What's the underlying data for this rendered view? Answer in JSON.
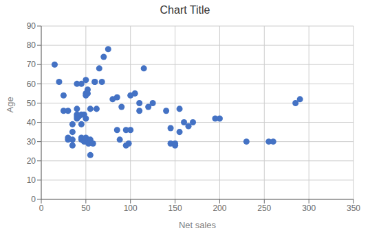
{
  "chart_data": {
    "type": "scatter",
    "title": "Chart Title",
    "xlabel": "Net sales",
    "ylabel": "Age",
    "x": [
      15,
      20,
      25,
      25,
      30,
      30,
      30,
      35,
      35,
      35,
      35,
      40,
      40,
      40,
      40,
      40,
      42,
      45,
      45,
      45,
      45,
      45,
      48,
      48,
      50,
      50,
      50,
      50,
      50,
      50,
      52,
      52,
      53,
      55,
      55,
      55,
      58,
      60,
      60,
      62,
      65,
      68,
      70,
      75,
      80,
      85,
      85,
      88,
      90,
      95,
      95,
      98,
      100,
      100,
      105,
      110,
      110,
      115,
      120,
      125,
      140,
      145,
      145,
      150,
      150,
      155,
      155,
      160,
      165,
      170,
      195,
      200,
      230,
      255,
      260,
      285,
      290
    ],
    "values": [
      70,
      61,
      54,
      46,
      31,
      32,
      46,
      39,
      28,
      35,
      31,
      44,
      42,
      43,
      47,
      60,
      43,
      44,
      39,
      32,
      31,
      60,
      44,
      30,
      55,
      54,
      42,
      30,
      32,
      62,
      57,
      55,
      29,
      47,
      31,
      23,
      29,
      61,
      61,
      47,
      68,
      61,
      74,
      78,
      52,
      36,
      53,
      31,
      48,
      36,
      28,
      29,
      36,
      54,
      55,
      50,
      46,
      68,
      48,
      50,
      46,
      37,
      29,
      28,
      29,
      35,
      47,
      40,
      38,
      40,
      42,
      42,
      30,
      30,
      30,
      50,
      52
    ],
    "color": "#4472C4",
    "xlim": [
      0,
      350
    ],
    "ylim": [
      0,
      90
    ],
    "xticks": [
      0,
      50,
      100,
      150,
      200,
      250,
      300,
      350
    ],
    "yticks": [
      0,
      10,
      20,
      30,
      40,
      50,
      60,
      70,
      80,
      90
    ],
    "grid": true
  }
}
